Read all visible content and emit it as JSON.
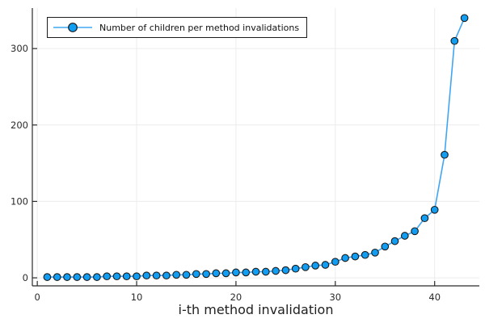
{
  "chart_data": {
    "type": "line",
    "title": "",
    "xlabel": "i-th method invalidation",
    "ylabel": "",
    "series_name": "Number of children per method invalidations",
    "x": [
      1,
      2,
      3,
      4,
      5,
      6,
      7,
      8,
      9,
      10,
      11,
      12,
      13,
      14,
      15,
      16,
      17,
      18,
      19,
      20,
      21,
      22,
      23,
      24,
      25,
      26,
      27,
      28,
      29,
      30,
      31,
      32,
      33,
      34,
      35,
      36,
      37,
      38,
      39,
      40,
      41,
      42,
      43
    ],
    "values": [
      1,
      1,
      1,
      1,
      1,
      1,
      2,
      2,
      2,
      2,
      3,
      3,
      3,
      4,
      4,
      5,
      5,
      6,
      6,
      7,
      7,
      8,
      8,
      9,
      10,
      12,
      14,
      16,
      17,
      21,
      26,
      28,
      30,
      33,
      41,
      48,
      55,
      61,
      78,
      89,
      161,
      310,
      340
    ],
    "xticks": [
      0,
      10,
      20,
      30,
      40
    ],
    "yticks": [
      0,
      100,
      200,
      300
    ],
    "xlim": [
      -0.5,
      44.5
    ],
    "ylim": [
      -10.5,
      353
    ],
    "grid": true,
    "legend_position": "top-left",
    "marker": "circle",
    "colors": {
      "marker_fill": "#109df2",
      "marker_stroke": "#1a1a1a",
      "line": "#41a5f2",
      "grid": "#ececec",
      "axis": "#2b2b2b",
      "tick_label": "#2b2b2b",
      "legend_border": "#1c1c1c",
      "legend_background": "#ffffff",
      "background": "#ffffff"
    }
  }
}
